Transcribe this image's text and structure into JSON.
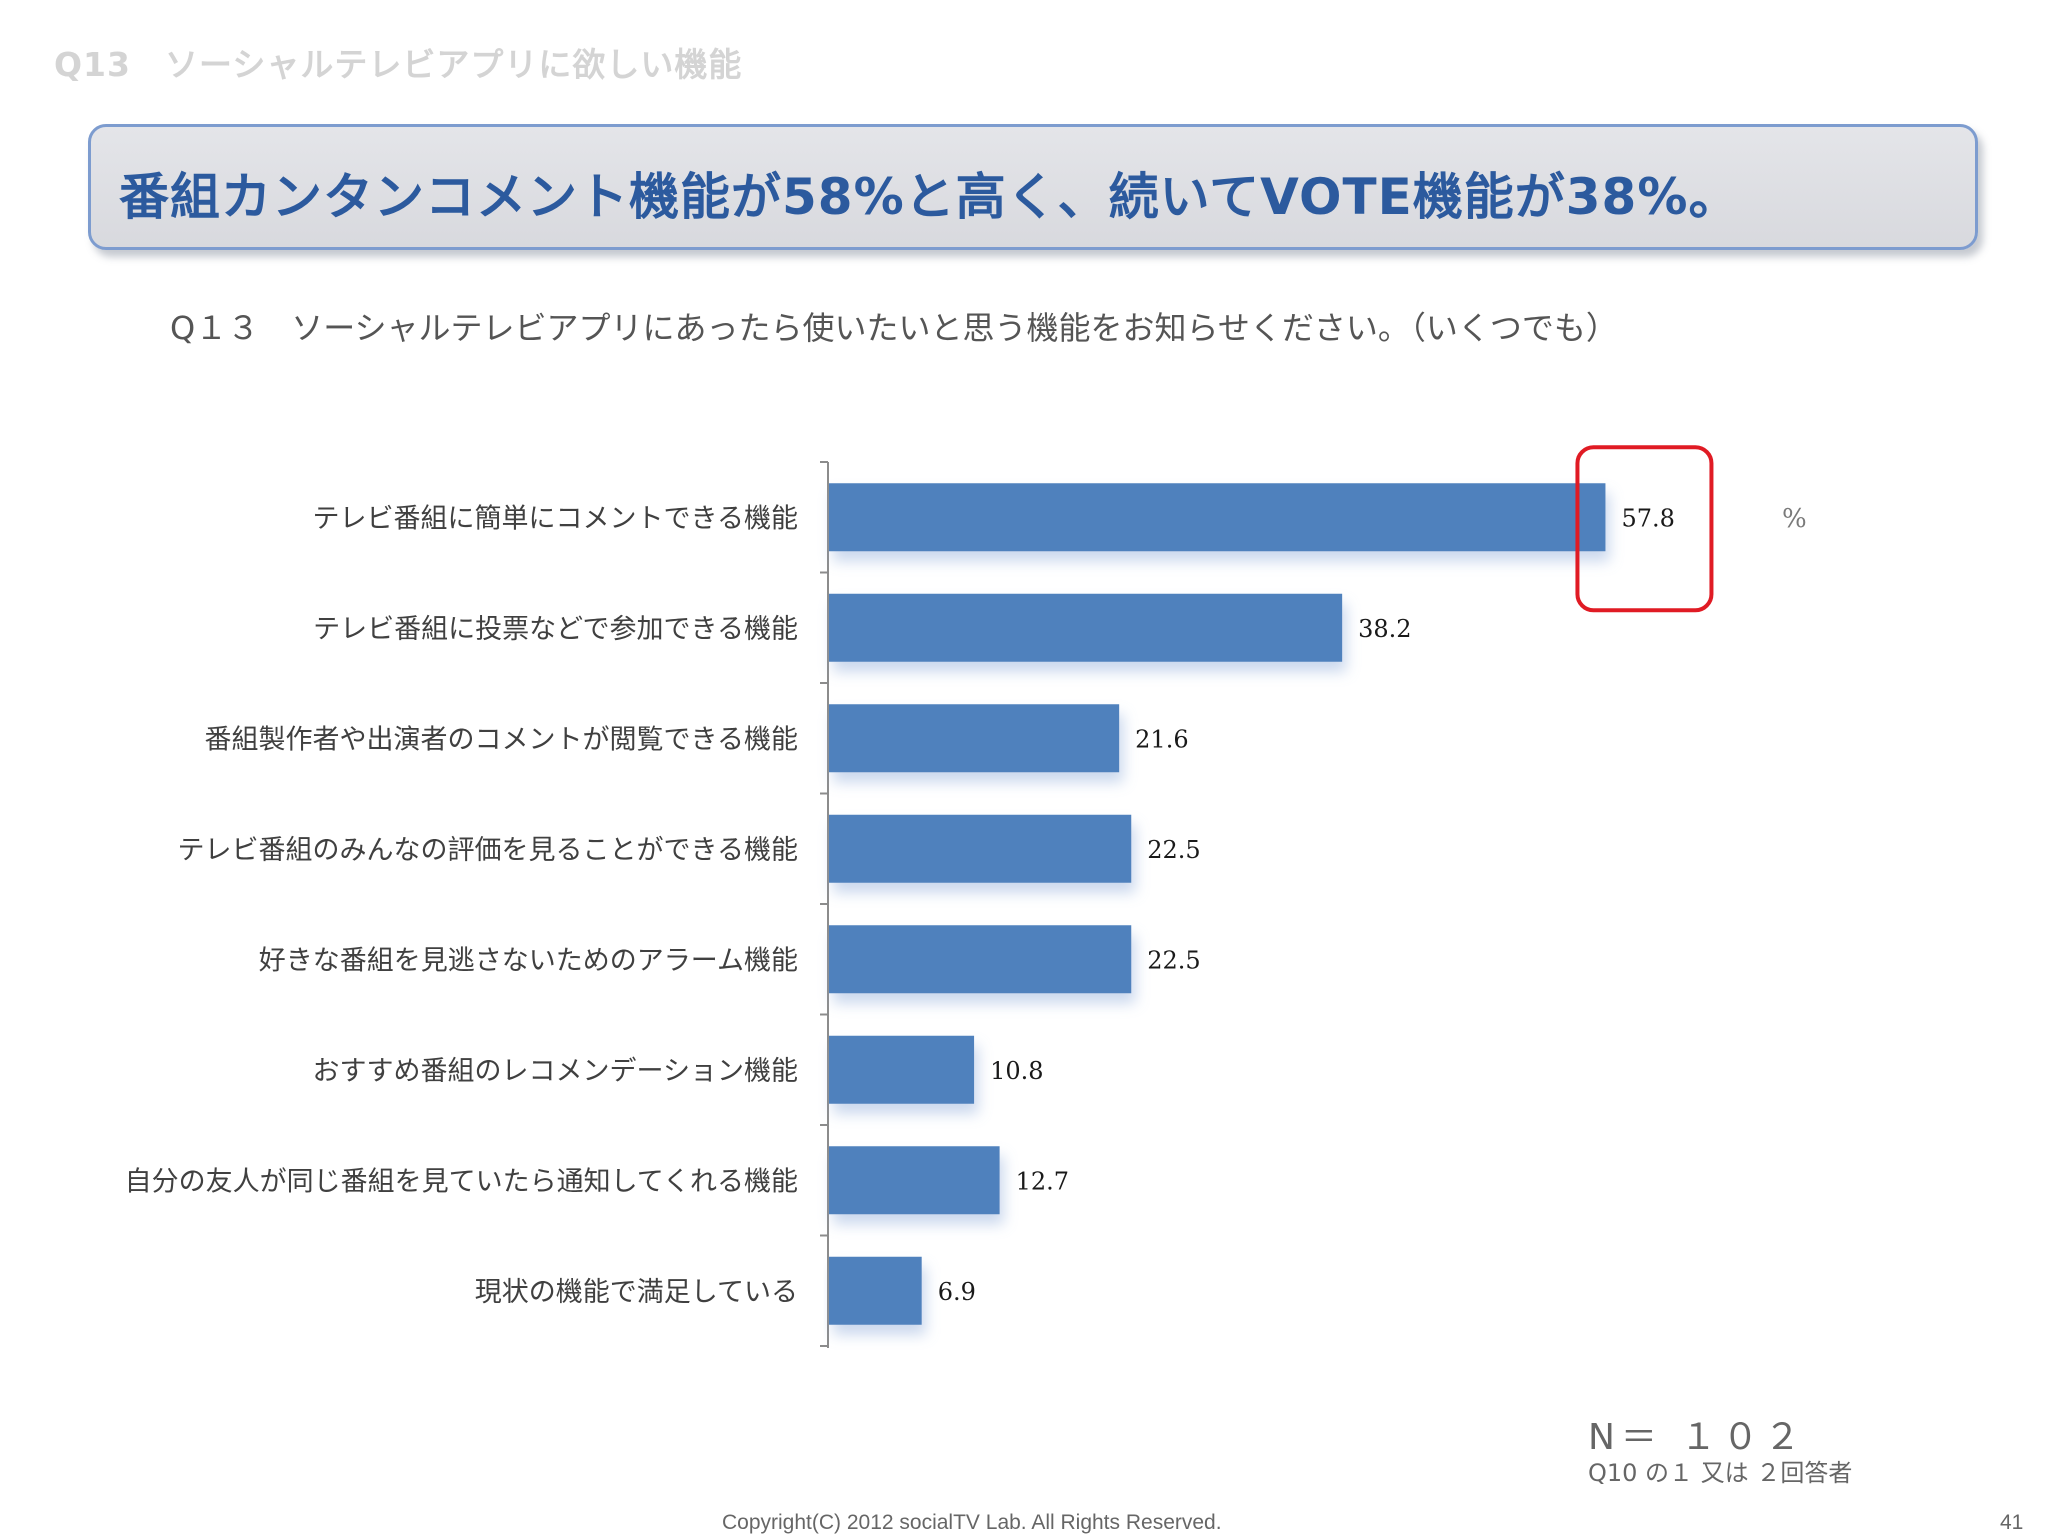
{
  "header": {
    "section_title": "Q13　ソーシャルテレビアプリに欲しい機能"
  },
  "headline": {
    "text": "番組カンタンコメント機能が58%と高く、続いてVOTE機能が38%。"
  },
  "question": {
    "text": "Q１３　ソーシャルテレビアプリにあったら使いたいと思う機能をお知らせください。（いくつでも）"
  },
  "chart_data": {
    "type": "bar",
    "orientation": "horizontal",
    "categories": [
      "テレビ番組に簡単にコメントできる機能",
      "テレビ番組に投票などで参加できる機能",
      "番組製作者や出演者のコメントが閲覧できる機能",
      "テレビ番組のみんなの評価を見ることができる機能",
      "好きな番組を見逃さないためのアラーム機能",
      "おすすめ番組のレコメンデーション機能",
      "自分の友人が同じ番組を見ていたら通知してくれる機能",
      "現状の機能で満足している"
    ],
    "values": [
      57.8,
      38.2,
      21.6,
      22.5,
      22.5,
      10.8,
      12.7,
      6.9
    ],
    "value_labels": [
      "57.8",
      "38.2",
      "21.6",
      "22.5",
      "22.5",
      "10.8",
      "12.7",
      "6.9"
    ],
    "unit": "%",
    "xlim": [
      0,
      60
    ],
    "highlight_index": 0,
    "grid": false,
    "colors": {
      "bar": "#4f81bd",
      "highlight_outline": "#e01b24"
    }
  },
  "footer": {
    "sample_size": "N＝ １０２",
    "sample_note": "Q10 の１ 又は ２回答者",
    "copyright": "Copyright(C) 2012 socialTV Lab. All Rights Reserved.",
    "page_number": "41"
  }
}
